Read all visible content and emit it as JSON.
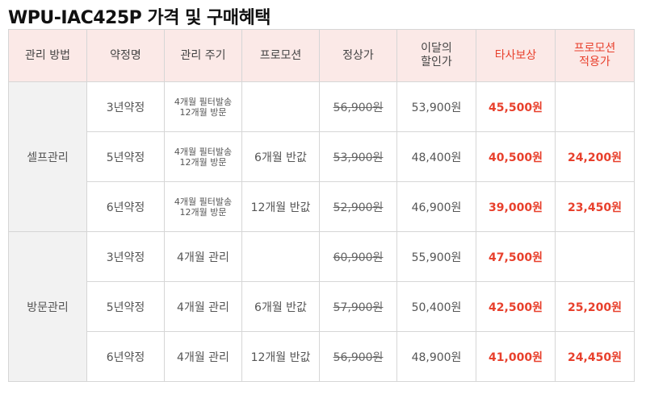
{
  "title": "WPU-IAC425P 가격 및 구매혜택",
  "headers": [
    "관리 방법",
    "약정명",
    "관리 주기",
    "프로모션",
    "정상가",
    "이달의\n할인가",
    "타사보상",
    "프로모션\n적용가"
  ],
  "groups": [
    {
      "name": "셀프관리",
      "rows": [
        {
          "plan": "3년약정",
          "cycle": [
            "4개월 필터발송",
            "12개월 방문"
          ],
          "promo": "",
          "regular": "56,900원",
          "discount": "53,900원",
          "comp": "45,500원",
          "promo_price": ""
        },
        {
          "plan": "5년약정",
          "cycle": [
            "4개월 필터발송",
            "12개월 방문"
          ],
          "promo": "6개월 반값",
          "regular": "53,900원",
          "discount": "48,400원",
          "comp": "40,500원",
          "promo_price": "24,200원"
        },
        {
          "plan": "6년약정",
          "cycle": [
            "4개월 필터발송",
            "12개월 방문"
          ],
          "promo": "12개월 반값",
          "regular": "52,900원",
          "discount": "46,900원",
          "comp": "39,000원",
          "promo_price": "23,450원"
        }
      ]
    },
    {
      "name": "방문관리",
      "rows": [
        {
          "plan": "3년약정",
          "cycle": [
            "4개월 관리"
          ],
          "promo": "",
          "regular": "60,900원",
          "discount": "55,900원",
          "comp": "47,500원",
          "promo_price": ""
        },
        {
          "plan": "5년약정",
          "cycle": [
            "4개월 관리"
          ],
          "promo": "6개월 반값",
          "regular": "57,900원",
          "discount": "50,400원",
          "comp": "42,500원",
          "promo_price": "25,200원"
        },
        {
          "plan": "6년약정",
          "cycle": [
            "4개월 관리"
          ],
          "promo": "12개월 반값",
          "regular": "56,900원",
          "discount": "48,900원",
          "comp": "41,000원",
          "promo_price": "24,450원"
        }
      ]
    }
  ],
  "colors": {
    "header_bg": "#fbe9e7",
    "accent_red": "#e8402c",
    "group_bg": "#f2f2f2",
    "border": "#d6d6d6"
  }
}
